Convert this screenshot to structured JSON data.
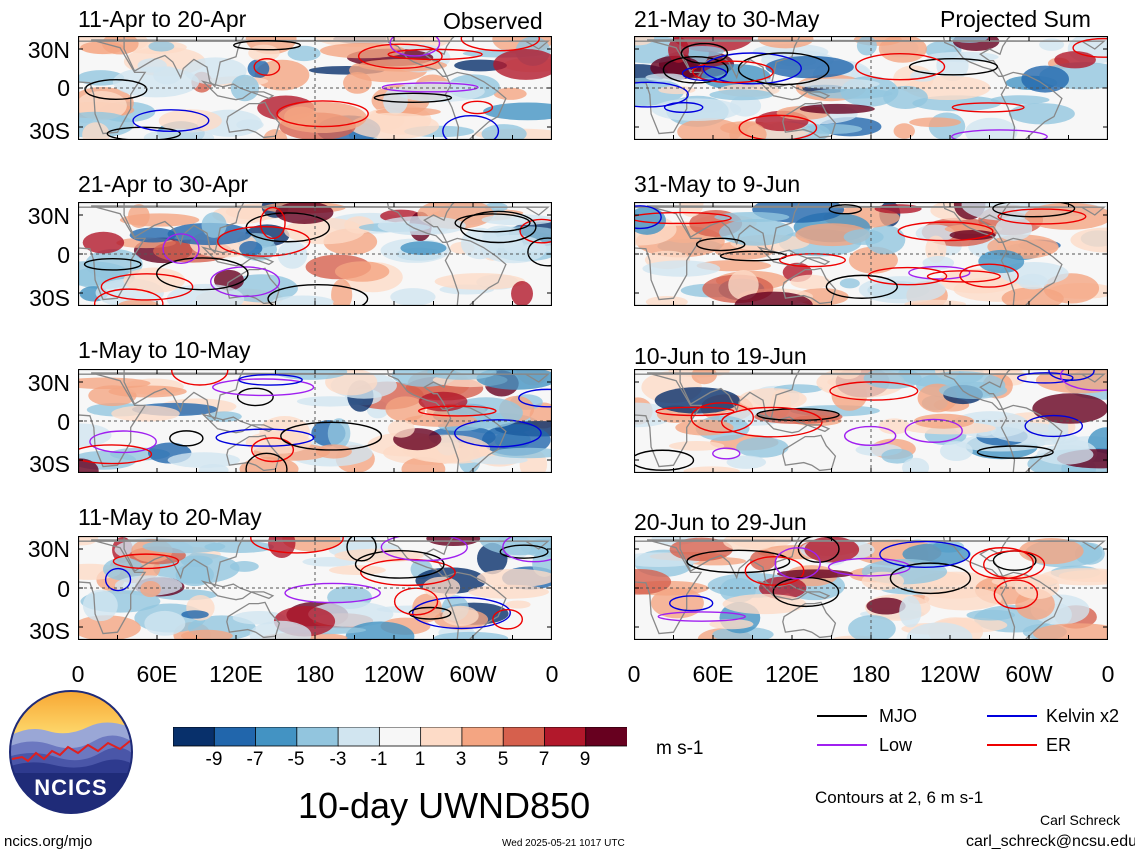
{
  "figure": {
    "main_title": "10-day UWND850",
    "observed_label": "Observed",
    "projected_label": "Projected Sum",
    "units": "m s-1",
    "contours_note": "Contours at 2, 6 m s-1",
    "author": "Carl Schreck",
    "email": "carl_schreck@ncsu.edu",
    "website": "ncics.org/mjo",
    "timestamp": "Wed 2025-05-21 1017 UTC",
    "logo_text": "NCICS"
  },
  "panels": [
    {
      "title": "11-Apr to 20-Apr",
      "kind": "Observed"
    },
    {
      "title": "21-Apr to 30-Apr",
      "kind": "Observed"
    },
    {
      "title": "1-May to 10-May",
      "kind": "Observed"
    },
    {
      "title": "11-May to 20-May",
      "kind": "Observed"
    },
    {
      "title": "21-May to 30-May",
      "kind": "Projected"
    },
    {
      "title": "31-May to 9-Jun",
      "kind": "Projected"
    },
    {
      "title": "10-Jun to 19-Jun",
      "kind": "Projected"
    },
    {
      "title": "20-Jun to 29-Jun",
      "kind": "Projected"
    }
  ],
  "axes": {
    "lat_ticks": [
      "30N",
      "0",
      "30S"
    ],
    "lon_ticks": [
      "0",
      "60E",
      "120E",
      "180",
      "120W",
      "60W",
      "0"
    ],
    "lat_range": [
      -40,
      40
    ],
    "lon_range": [
      0,
      360
    ]
  },
  "colorbar": {
    "labels": [
      "-9",
      "-7",
      "-5",
      "-3",
      "-1",
      "1",
      "3",
      "5",
      "7",
      "9"
    ],
    "colors": [
      "#08306b",
      "#2166ac",
      "#4393c3",
      "#92c5de",
      "#d1e5f0",
      "#f7f7f7",
      "#fddbc7",
      "#f4a582",
      "#d6604d",
      "#b2182b",
      "#67001f"
    ]
  },
  "legend": {
    "items": [
      {
        "label": "MJO",
        "color": "#000000"
      },
      {
        "label": "Kelvin x2",
        "color": "#0000dd"
      },
      {
        "label": "Low",
        "color": "#a020f0"
      },
      {
        "label": "ER",
        "color": "#ee0000"
      }
    ]
  }
}
